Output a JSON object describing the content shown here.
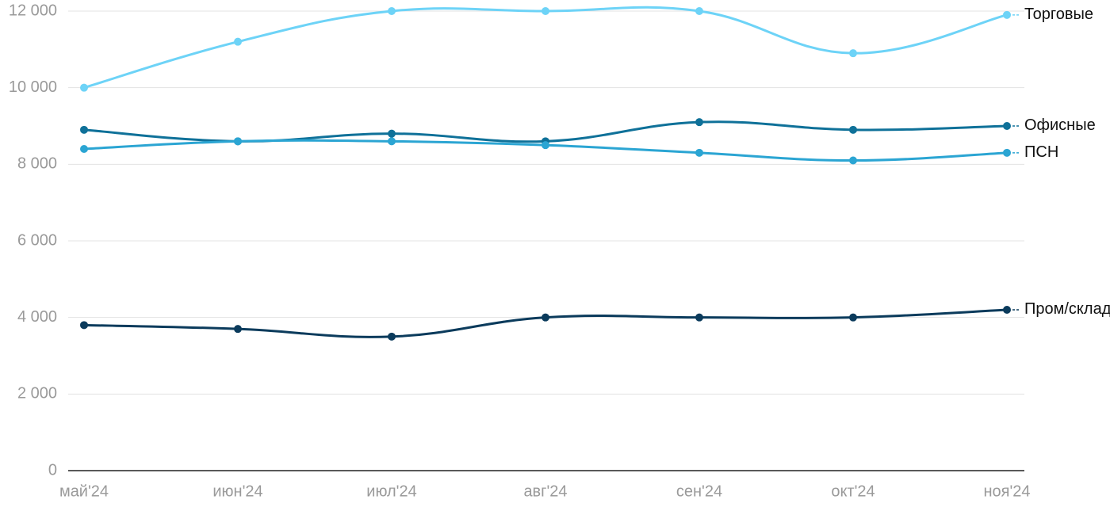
{
  "chart_data": {
    "type": "line",
    "categories": [
      "май'24",
      "июн'24",
      "июл'24",
      "авг'24",
      "сен'24",
      "окт'24",
      "ноя'24"
    ],
    "series": [
      {
        "name": "Торговые",
        "color": "#6dd3f7",
        "values": [
          10000,
          11200,
          12000,
          12000,
          12000,
          10900,
          11900
        ]
      },
      {
        "name": "Офисные",
        "color": "#0f7199",
        "values": [
          8900,
          8600,
          8800,
          8600,
          9100,
          8900,
          9000
        ]
      },
      {
        "name": "ПСН",
        "color": "#2ba5d3",
        "values": [
          8400,
          8600,
          8600,
          8500,
          8300,
          8100,
          8300
        ]
      },
      {
        "name": "Пром/склад",
        "color": "#0b3b5c",
        "values": [
          3800,
          3700,
          3500,
          4000,
          4000,
          4000,
          4200
        ]
      }
    ],
    "ylim": [
      0,
      12000
    ],
    "yticks": [
      0,
      {
        "value": 2000,
        "label": "2 000"
      },
      {
        "value": 4000,
        "label": "4 000"
      },
      {
        "value": 6000,
        "label": "6 000"
      },
      {
        "value": 8000,
        "label": "8 000"
      },
      {
        "value": 10000,
        "label": "10 000"
      },
      {
        "value": 12000,
        "label": "12 000"
      }
    ],
    "grid": true
  }
}
